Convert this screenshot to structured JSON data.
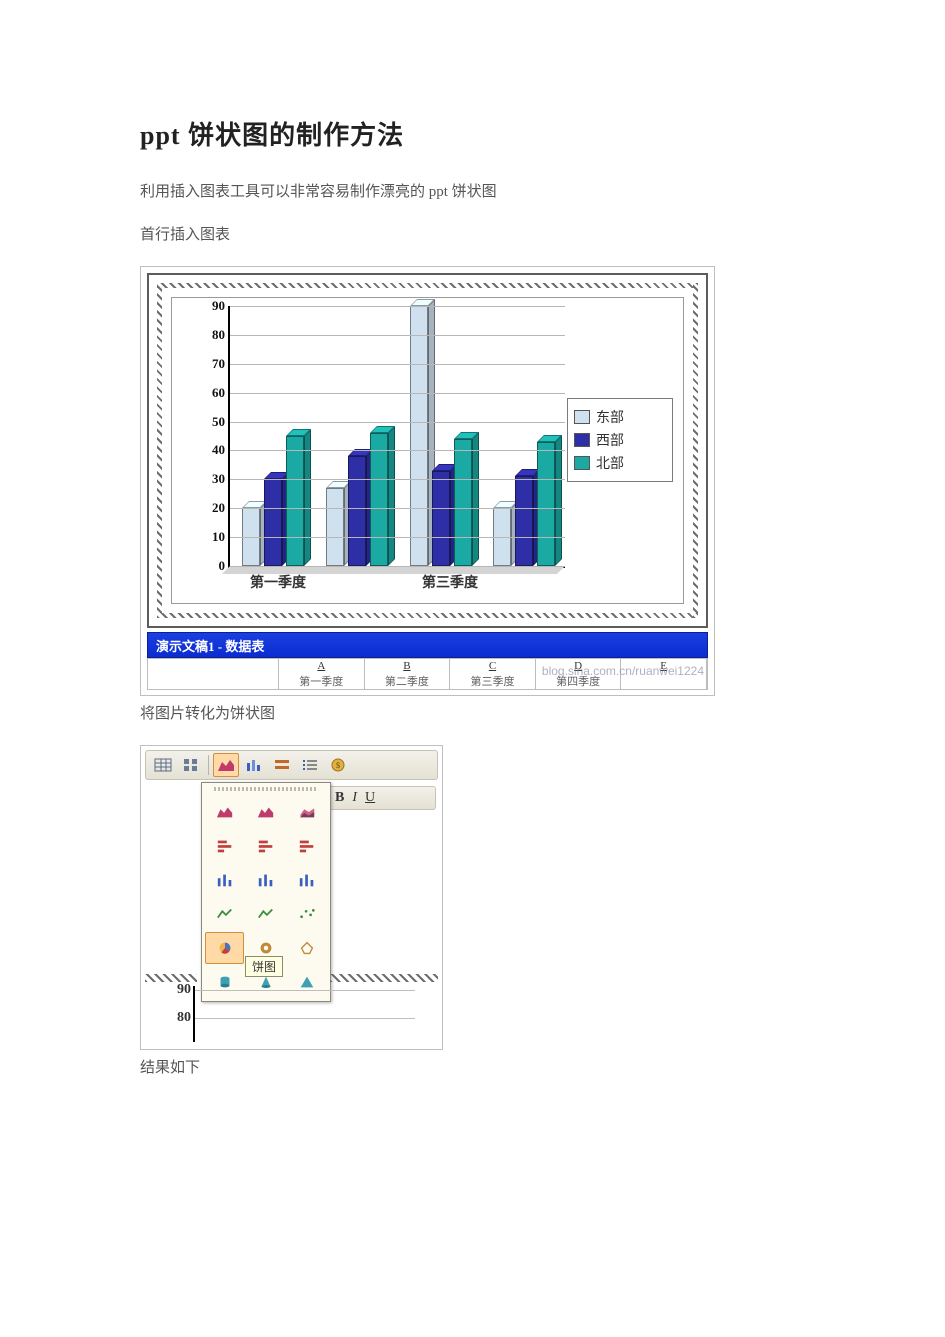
{
  "title": "ppt 饼状图的制作方法",
  "para1": "利用插入图表工具可以非常容易制作漂亮的 ppt 饼状图",
  "para2": "首行插入图表",
  "para3": "将图片转化为饼状图",
  "para4": "结果如下",
  "chart1": {
    "type": "bar-3d",
    "ylim": [
      0,
      90
    ],
    "ytick_step": 10,
    "yticks": [
      0,
      10,
      20,
      30,
      40,
      50,
      60,
      70,
      80,
      90
    ],
    "categories": [
      "第一季度",
      "第二季度",
      "第三季度",
      "第四季度"
    ],
    "visible_xlabels": [
      "第一季度",
      "第三季度"
    ],
    "series": [
      {
        "name": "东部",
        "color": "#cfe0ee",
        "values": [
          20,
          27,
          90,
          20
        ]
      },
      {
        "name": "西部",
        "color": "#2e2ea6",
        "values": [
          30,
          38,
          33,
          31
        ]
      },
      {
        "name": "北部",
        "color": "#1aa9a3",
        "values": [
          45,
          46,
          44,
          43
        ]
      }
    ],
    "axis_color": "#000000",
    "grid_color": "#b7b7b7",
    "background_color": "#ffffff",
    "legend_border": "#7a7a7a",
    "label_fontsize": 14,
    "tick_fontsize": 13
  },
  "datasheet": {
    "window_title": "演示文稿1 - 数据表",
    "titlebar_bg": "#1230d8",
    "columns": [
      "A",
      "B",
      "C",
      "D",
      "E"
    ],
    "col_sub": [
      "第一季度",
      "第二季度",
      "第三季度",
      "第四季度",
      ""
    ],
    "watermark": "blog.sina.com.cn/ruanwei1224"
  },
  "toolbar_icons": [
    "table-icon",
    "grid-icon",
    "area-chart-icon",
    "column-chart-icon",
    "row-format-icon",
    "list-icon",
    "currency-icon"
  ],
  "format_buttons": [
    "B",
    "I",
    "U"
  ],
  "chart_type_picker": {
    "tooltip": "饼图",
    "rows": [
      [
        "area-chart",
        "area3d-chart",
        "surface-chart"
      ],
      [
        "bar-chart",
        "bar3d-chart",
        "barstack-chart"
      ],
      [
        "column-chart",
        "column3d-chart",
        "columnstack-chart"
      ],
      [
        "line-chart",
        "line3d-chart",
        "scatter-chart"
      ],
      [
        "pie-chart",
        "doughnut-chart",
        "radar-chart"
      ],
      [
        "cylinder-chart",
        "cone-chart",
        "pyramid-chart"
      ]
    ],
    "selected": "pie-chart",
    "palette": {
      "area": "#c03b6b",
      "bar": "#c04040",
      "column": "#3b5fc0",
      "line": "#3b8f3b",
      "pie": "#c08a3b",
      "solid": "#3fa0b5"
    }
  },
  "mini_axis": {
    "yticks": [
      90,
      80
    ]
  }
}
